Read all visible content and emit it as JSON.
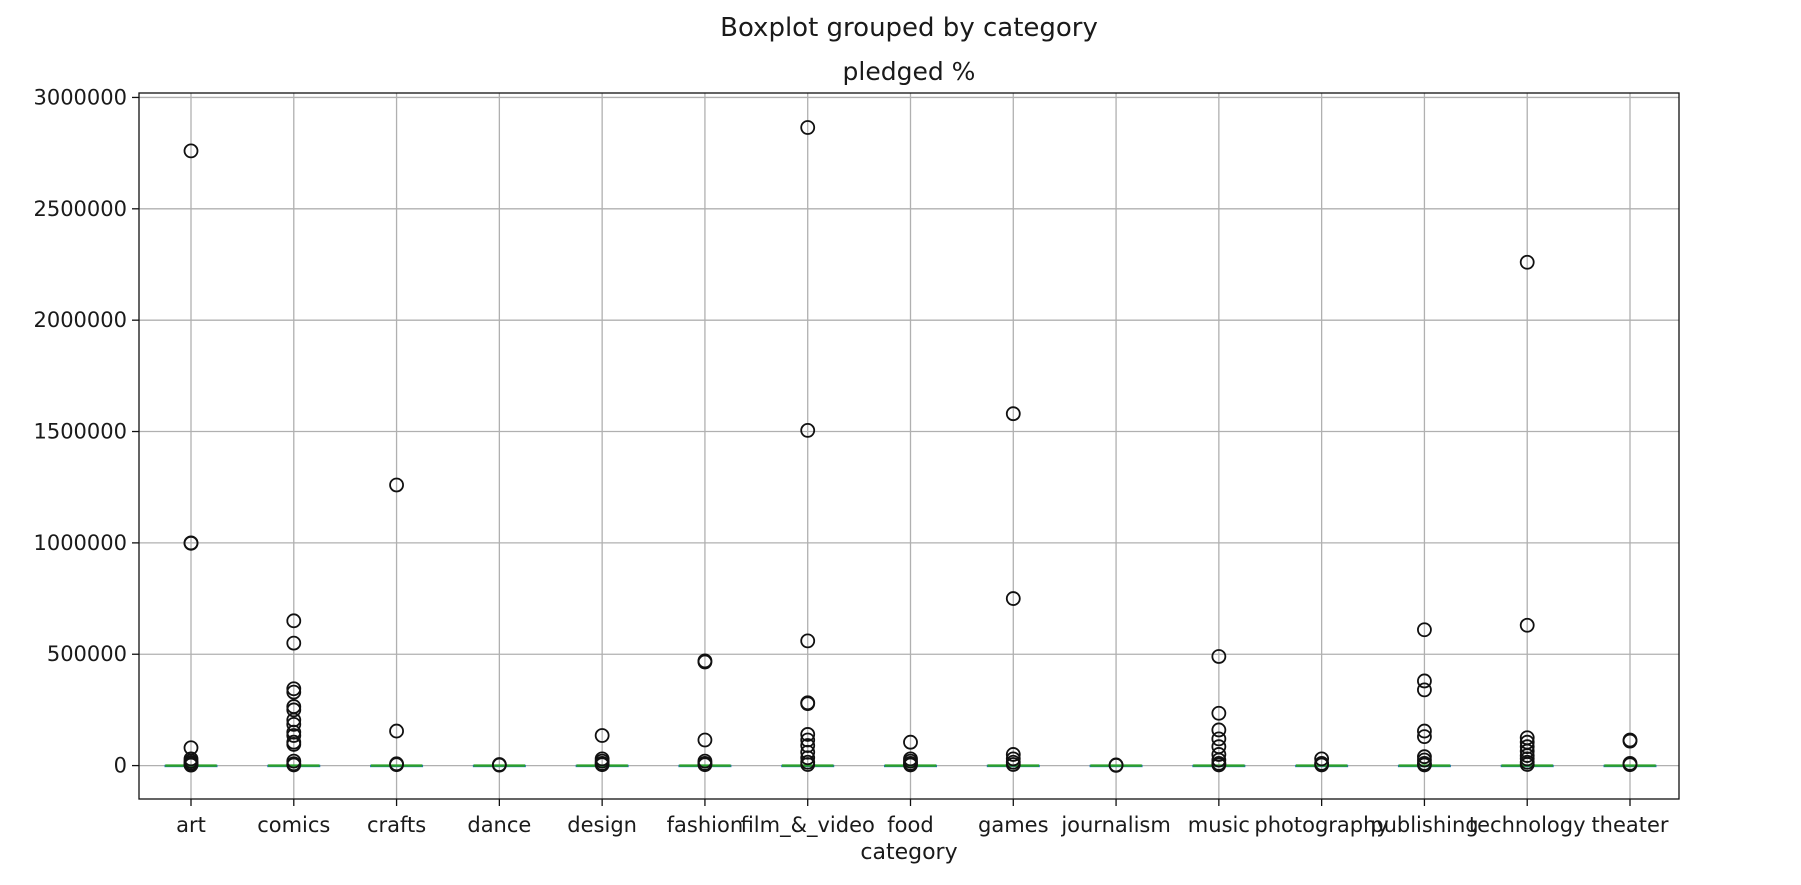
{
  "chart_data": {
    "type": "boxplot",
    "suptitle": "Boxplot grouped by category",
    "title": "pledged %",
    "xlabel": "category",
    "ylabel": "",
    "ylim": [
      -150000,
      3020000
    ],
    "yticks": [
      0,
      500000,
      1000000,
      1500000,
      2000000,
      2500000,
      3000000
    ],
    "yticklabels": [
      "0",
      "500000",
      "1000000",
      "1500000",
      "2000000",
      "2500000",
      "3000000"
    ],
    "grid": true,
    "categories": [
      "art",
      "comics",
      "crafts",
      "dance",
      "design",
      "fashion",
      "film_&_video",
      "food",
      "games",
      "journalism",
      "music",
      "photography",
      "publishing",
      "technology",
      "theater"
    ],
    "boxes": [
      {
        "category": "art",
        "q1": 80,
        "median": 100,
        "q3": 140,
        "whisker_low": 0,
        "whisker_high": 250,
        "outliers": [
          2760000,
          1000000,
          998000,
          80000,
          30000,
          20000,
          12000,
          5000,
          2000
        ]
      },
      {
        "category": "comics",
        "q1": 95,
        "median": 110,
        "q3": 150,
        "whisker_low": 0,
        "whisker_high": 260,
        "outliers": [
          650000,
          550000,
          345000,
          330000,
          265000,
          250000,
          205000,
          185000,
          150000,
          135000,
          105000,
          95000,
          20000,
          8000,
          3000
        ]
      },
      {
        "category": "crafts",
        "q1": 20,
        "median": 80,
        "q3": 120,
        "whisker_low": 0,
        "whisker_high": 250,
        "outliers": [
          1260000,
          155000,
          8000,
          4000
        ]
      },
      {
        "category": "dance",
        "q1": 90,
        "median": 105,
        "q3": 125,
        "whisker_low": 0,
        "whisker_high": 180,
        "outliers": [
          5000,
          2000
        ]
      },
      {
        "category": "design",
        "q1": 50,
        "median": 110,
        "q3": 250,
        "whisker_low": 0,
        "whisker_high": 550,
        "outliers": [
          135000,
          30000,
          20000,
          10000,
          4000
        ]
      },
      {
        "category": "fashion",
        "q1": 20,
        "median": 80,
        "q3": 150,
        "whisker_low": 0,
        "whisker_high": 340,
        "outliers": [
          470000,
          465000,
          115000,
          20000,
          10000,
          4000
        ]
      },
      {
        "category": "film_&_video",
        "q1": 60,
        "median": 100,
        "q3": 130,
        "whisker_low": 0,
        "whisker_high": 230,
        "outliers": [
          2865000,
          1505000,
          560000,
          282000,
          278000,
          140000,
          115000,
          90000,
          60000,
          35000,
          15000,
          5000
        ]
      },
      {
        "category": "food",
        "q1": 20,
        "median": 90,
        "q3": 125,
        "whisker_low": 0,
        "whisker_high": 260,
        "outliers": [
          105000,
          30000,
          20000,
          10000,
          3000
        ]
      },
      {
        "category": "games",
        "q1": 40,
        "median": 110,
        "q3": 250,
        "whisker_low": 0,
        "whisker_high": 560,
        "outliers": [
          1580000,
          750000,
          50000,
          30000,
          15000,
          5000
        ]
      },
      {
        "category": "journalism",
        "q1": 5,
        "median": 40,
        "q3": 110,
        "whisker_low": 0,
        "whisker_high": 250,
        "outliers": [
          3000,
          1000
        ]
      },
      {
        "category": "music",
        "q1": 80,
        "median": 105,
        "q3": 130,
        "whisker_low": 0,
        "whisker_high": 200,
        "outliers": [
          490000,
          235000,
          160000,
          120000,
          85000,
          50000,
          25000,
          10000,
          3000
        ]
      },
      {
        "category": "photography",
        "q1": 20,
        "median": 80,
        "q3": 120,
        "whisker_low": 0,
        "whisker_high": 260,
        "outliers": [
          30000,
          10000,
          3000
        ]
      },
      {
        "category": "publishing",
        "q1": 20,
        "median": 90,
        "q3": 120,
        "whisker_low": 0,
        "whisker_high": 260,
        "outliers": [
          610000,
          380000,
          340000,
          155000,
          130000,
          40000,
          25000,
          10000,
          3000
        ]
      },
      {
        "category": "technology",
        "q1": 20,
        "median": 100,
        "q3": 200,
        "whisker_low": 0,
        "whisker_high": 450,
        "outliers": [
          2260000,
          630000,
          125000,
          105000,
          85000,
          65000,
          45000,
          30000,
          15000,
          5000
        ]
      },
      {
        "category": "theater",
        "q1": 70,
        "median": 105,
        "q3": 130,
        "whisker_low": 0,
        "whisker_high": 220,
        "outliers": [
          115000,
          110000,
          10000,
          4000
        ]
      }
    ]
  }
}
